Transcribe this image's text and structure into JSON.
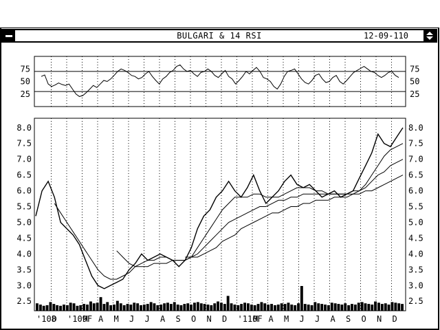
{
  "window": {
    "title": "BULGARI & 14 RSI",
    "date": "12-09-110"
  },
  "colors": {
    "background": "#ffffff",
    "ink": "#000000"
  },
  "chart_data": [
    {
      "type": "line",
      "title": "",
      "series": [
        {
          "values": [
            60,
            63,
            45,
            40,
            43,
            47,
            44,
            42,
            45,
            35,
            25,
            20,
            22,
            28,
            35,
            42,
            38,
            45,
            52,
            50,
            55,
            62,
            70,
            75,
            72,
            68,
            62,
            60,
            55,
            58,
            65,
            70,
            60,
            52,
            45,
            55,
            60,
            68,
            72,
            80,
            83,
            75,
            70,
            72,
            65,
            60,
            68,
            70,
            75,
            70,
            62,
            58,
            65,
            72,
            60,
            55,
            45,
            52,
            60,
            70,
            65,
            72,
            78,
            70,
            58,
            55,
            50,
            40,
            35,
            45,
            60,
            70,
            72,
            75,
            65,
            55,
            48,
            45,
            52,
            62,
            65,
            55,
            48,
            50,
            58,
            62,
            50,
            45,
            52,
            60,
            68,
            72,
            76,
            80,
            75,
            70,
            68,
            62,
            58,
            62,
            68,
            70,
            62,
            58
          ]
        }
      ],
      "ylim": [
        0,
        100
      ],
      "yticks": [
        25,
        50,
        75
      ],
      "hlines": [
        30,
        70
      ]
    },
    {
      "type": "line",
      "title": "",
      "ylim": [
        2.2,
        8.3
      ],
      "yticks": [
        "2.5",
        "3.0",
        "3.5",
        "4.0",
        "4.5",
        "5.0",
        "5.5",
        "6.0",
        "6.5",
        "7.0",
        "7.5",
        "8.0"
      ],
      "x_month_labels": [
        "'108",
        "D",
        "'109F",
        "M",
        "A",
        "M",
        "J",
        "J",
        "A",
        "S",
        "O",
        "N",
        "D",
        "'110F",
        "M",
        "A",
        "M",
        "J",
        "J",
        "A",
        "S",
        "O",
        "N",
        "D"
      ],
      "series": [
        {
          "values": [
            5.2,
            6.0,
            6.3,
            5.8,
            5.0,
            4.8,
            4.6,
            4.3,
            3.8,
            3.3,
            3.0,
            2.9,
            3.0,
            3.1,
            3.2,
            3.5,
            3.7,
            4.0,
            3.8,
            3.9,
            4.0,
            3.9,
            3.8,
            3.6,
            3.8,
            4.2,
            4.8,
            5.2,
            5.4,
            5.8,
            6.0,
            6.3,
            6.0,
            5.8,
            6.1,
            6.5,
            6.0,
            5.6,
            5.8,
            6.0,
            6.3,
            6.5,
            6.2,
            6.1,
            6.2,
            6.0,
            5.8,
            5.9,
            6.0,
            5.8,
            5.9,
            6.0,
            6.4,
            6.8,
            7.2,
            7.8,
            7.5,
            7.4,
            7.7,
            8.0
          ]
        },
        {
          "values": [
            null,
            null,
            null,
            5.6,
            5.3,
            5.0,
            4.7,
            4.4,
            4.1,
            3.8,
            3.5,
            3.3,
            3.2,
            3.2,
            3.3,
            3.4,
            3.6,
            3.7,
            3.8,
            3.8,
            3.9,
            3.9,
            3.8,
            3.8,
            3.8,
            3.9,
            4.2,
            4.5,
            4.8,
            5.1,
            5.4,
            5.6,
            5.8,
            5.8,
            5.8,
            5.9,
            5.9,
            5.8,
            5.8,
            5.8,
            5.9,
            6.0,
            6.1,
            6.1,
            6.1,
            6.0,
            6.0,
            5.9,
            5.9,
            5.9,
            5.9,
            5.9,
            6.0,
            6.2,
            6.5,
            6.8,
            7.1,
            7.3,
            7.4,
            7.5
          ]
        },
        {
          "values": [
            null,
            null,
            null,
            null,
            null,
            null,
            null,
            null,
            null,
            null,
            null,
            null,
            null,
            4.1,
            3.9,
            3.7,
            3.6,
            3.6,
            3.6,
            3.7,
            3.7,
            3.7,
            3.8,
            3.8,
            3.8,
            3.9,
            4.0,
            4.2,
            4.4,
            4.6,
            4.8,
            5.0,
            5.1,
            5.2,
            5.3,
            5.4,
            5.5,
            5.5,
            5.6,
            5.7,
            5.7,
            5.8,
            5.8,
            5.9,
            5.9,
            5.9,
            5.9,
            5.9,
            5.9,
            5.9,
            5.9,
            6.0,
            6.0,
            6.1,
            6.3,
            6.5,
            6.6,
            6.8,
            6.9,
            7.0
          ]
        },
        {
          "values": [
            null,
            null,
            null,
            null,
            null,
            null,
            null,
            null,
            null,
            null,
            null,
            null,
            null,
            null,
            null,
            null,
            null,
            null,
            null,
            null,
            null,
            null,
            null,
            null,
            3.9,
            3.9,
            3.9,
            4.0,
            4.1,
            4.2,
            4.4,
            4.5,
            4.6,
            4.8,
            4.9,
            5.0,
            5.1,
            5.2,
            5.3,
            5.3,
            5.4,
            5.5,
            5.5,
            5.6,
            5.6,
            5.7,
            5.7,
            5.7,
            5.8,
            5.8,
            5.8,
            5.9,
            5.9,
            6.0,
            6.0,
            6.1,
            6.2,
            6.3,
            6.4,
            6.5
          ]
        }
      ],
      "volume": [
        12,
        10,
        8,
        9,
        14,
        11,
        9,
        8,
        10,
        9,
        13,
        12,
        8,
        9,
        11,
        10,
        15,
        12,
        13,
        22,
        11,
        14,
        9,
        10,
        16,
        12,
        9,
        11,
        10,
        13,
        12,
        9,
        10,
        11,
        14,
        12,
        9,
        10,
        12,
        13,
        11,
        14,
        10,
        9,
        11,
        12,
        10,
        13,
        14,
        12,
        11,
        10,
        9,
        12,
        15,
        13,
        11,
        24,
        12,
        10,
        9,
        11,
        13,
        12,
        10,
        9,
        11,
        14,
        12,
        10,
        11,
        9,
        10,
        12,
        11,
        13,
        10,
        9,
        12,
        40,
        11,
        10,
        9,
        14,
        12,
        11,
        10,
        9,
        13,
        12,
        11,
        10,
        12,
        9,
        11,
        10,
        13,
        14,
        12,
        11,
        10,
        15,
        13,
        11,
        12,
        10,
        14,
        13,
        12,
        11
      ]
    }
  ]
}
